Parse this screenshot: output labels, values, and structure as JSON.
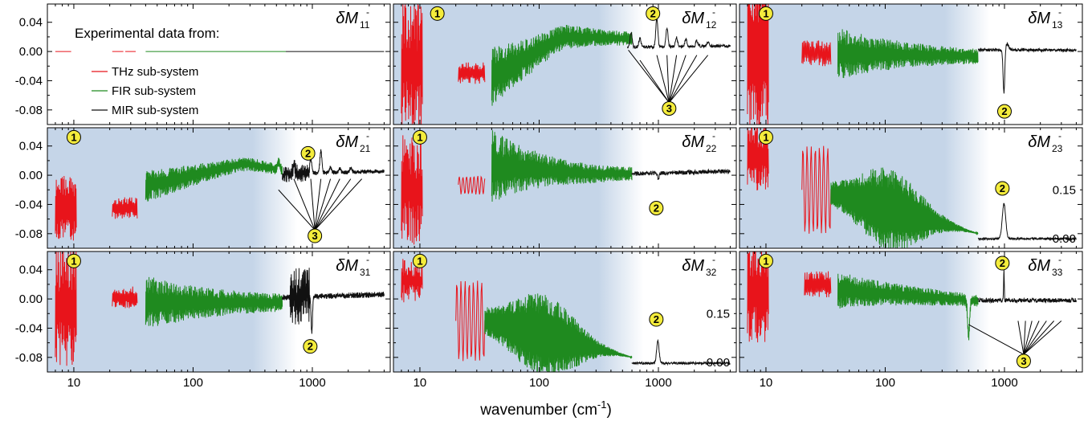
{
  "chart_data": {
    "type": "line",
    "x_axis": {
      "label": "wavenumber (cm",
      "label_sup": "-1",
      "label_close": ")",
      "scale": "log",
      "range": [
        6,
        4500
      ],
      "ticks": [
        10,
        100,
        1000
      ],
      "tick_labels": [
        "10",
        "100",
        "1000"
      ]
    },
    "left_y_axis": {
      "range": [
        -0.1,
        0.065
      ],
      "ticks": [
        0.04,
        0.0,
        -0.04,
        -0.08
      ],
      "tick_labels": [
        "0.04",
        "0.00",
        "-0.04",
        "-0.08"
      ]
    },
    "right_y_axis": {
      "ticks": [
        0.15,
        0.0
      ],
      "tick_labels": [
        "0.15",
        "0.00"
      ]
    },
    "legend": {
      "title": "Experimental data from:",
      "entries": [
        {
          "name": "THz sub-system",
          "color": "#e8141b"
        },
        {
          "name": "FIR  sub-system",
          "color": "#1f8a1f"
        },
        {
          "name": "MIR sub-system",
          "color": "#111111"
        }
      ]
    },
    "spectral_ranges_cm1": {
      "THz": [
        7,
        35
      ],
      "FIR": [
        40,
        600
      ],
      "MIR": [
        600,
        4000
      ]
    },
    "shading": {
      "color": "#c5d5e8",
      "end_cm1": 750
    },
    "markers": [
      "1",
      "2",
      "3"
    ],
    "panels": [
      {
        "title": "δM",
        "sub": "11",
        "sup": "-",
        "right_axis": false
      },
      {
        "title": "δM",
        "sub": "12",
        "sup": "-",
        "right_axis": false
      },
      {
        "title": "δM",
        "sub": "13",
        "sup": "-",
        "right_axis": false
      },
      {
        "title": "δM",
        "sub": "21",
        "sup": "-",
        "right_axis": false
      },
      {
        "title": "δM",
        "sub": "22",
        "sup": "-",
        "right_axis": false
      },
      {
        "title": "δM",
        "sub": "23",
        "sup": "-",
        "right_axis": true
      },
      {
        "title": "δM",
        "sub": "31",
        "sup": "-",
        "right_axis": false
      },
      {
        "title": "δM",
        "sub": "32",
        "sup": "-",
        "right_axis": true
      },
      {
        "title": "δM",
        "sub": "33",
        "sup": "-",
        "right_axis": false
      }
    ]
  }
}
